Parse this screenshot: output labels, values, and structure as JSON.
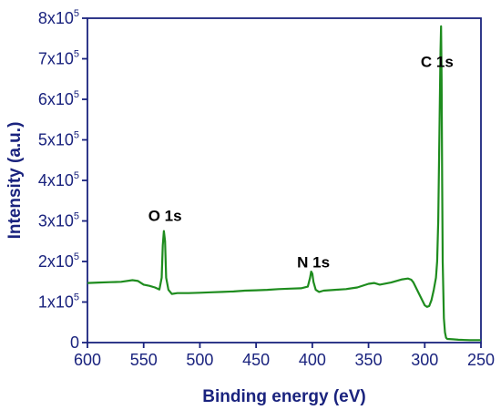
{
  "chart_data": {
    "type": "line",
    "xlabel": "Binding energy (eV)",
    "ylabel": "Intensity (a.u.)",
    "xlim": [
      600,
      250
    ],
    "ylim": [
      0,
      800000
    ],
    "x_reversed": true,
    "x_ticks": [
      "600",
      "550",
      "500",
      "450",
      "400",
      "350",
      "300",
      "250"
    ],
    "y_ticks": [
      {
        "value": 0,
        "base": "0",
        "exp": ""
      },
      {
        "value": 100000,
        "base": "1x10",
        "exp": "5"
      },
      {
        "value": 200000,
        "base": "2x10",
        "exp": "5"
      },
      {
        "value": 300000,
        "base": "3x10",
        "exp": "5"
      },
      {
        "value": 400000,
        "base": "4x10",
        "exp": "5"
      },
      {
        "value": 500000,
        "base": "5x10",
        "exp": "5"
      },
      {
        "value": 600000,
        "base": "6x10",
        "exp": "5"
      },
      {
        "value": 700000,
        "base": "7x10",
        "exp": "5"
      },
      {
        "value": 800000,
        "base": "8x10",
        "exp": "5"
      }
    ],
    "annotations": [
      {
        "text": "O 1s",
        "x": 531,
        "y": 300000
      },
      {
        "text": "N 1s",
        "x": 399,
        "y": 185000
      },
      {
        "text": "C 1s",
        "x": 289,
        "y": 680000
      }
    ],
    "series": [
      {
        "color": "#1e8c1e",
        "x": [
          600,
          590,
          580,
          570,
          560,
          555,
          550,
          545,
          540,
          536,
          534,
          533,
          532,
          531,
          530,
          528,
          525,
          520,
          510,
          500,
          490,
          480,
          470,
          460,
          450,
          440,
          430,
          420,
          410,
          404,
          402,
          401,
          400,
          399,
          397,
          394,
          390,
          380,
          370,
          360,
          350,
          345,
          340,
          330,
          320,
          315,
          312,
          310,
          305,
          300,
          298,
          296,
          294,
          292,
          290,
          289,
          288,
          287,
          286,
          285.5,
          285,
          284.5,
          284,
          283,
          282,
          281,
          280,
          275,
          270,
          260,
          250
        ],
        "y": [
          147000,
          148000,
          149000,
          150000,
          154000,
          152000,
          143000,
          140000,
          136000,
          131000,
          160000,
          240000,
          275000,
          250000,
          160000,
          130000,
          120000,
          122000,
          122000,
          123000,
          124000,
          125000,
          126000,
          128000,
          129000,
          130000,
          132000,
          133000,
          134000,
          138000,
          160000,
          175000,
          170000,
          150000,
          130000,
          125000,
          128000,
          130000,
          132000,
          136000,
          145000,
          147000,
          143000,
          148000,
          156000,
          158000,
          155000,
          148000,
          120000,
          92000,
          88000,
          90000,
          105000,
          130000,
          160000,
          200000,
          300000,
          500000,
          720000,
          780000,
          650000,
          400000,
          200000,
          60000,
          25000,
          12000,
          9000,
          8000,
          7000,
          6000,
          6000
        ]
      }
    ]
  }
}
